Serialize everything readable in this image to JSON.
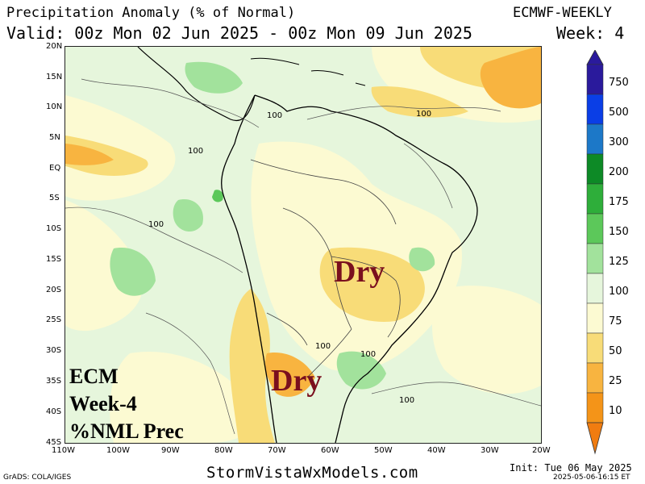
{
  "header": {
    "title": "Precipitation Anomaly (% of Normal)",
    "valid": "Valid: 00z Mon 02 Jun 2025 - 00z Mon 09 Jun 2025",
    "model": "ECMWF-WEEKLY",
    "week": "Week: 4"
  },
  "axes": {
    "lat_labels": [
      "20N",
      "15N",
      "10N",
      "5N",
      "EQ",
      "5S",
      "10S",
      "15S",
      "20S",
      "25S",
      "30S",
      "35S",
      "40S",
      "45S"
    ],
    "lon_labels": [
      "110W",
      "100W",
      "90W",
      "80W",
      "70W",
      "60W",
      "50W",
      "40W",
      "30W",
      "20W"
    ]
  },
  "annotations": {
    "dry_north": "Dry",
    "dry_south": "Dry",
    "ecm_line1": "ECM",
    "ecm_line2": "Week-4",
    "ecm_line3": "%NML Prec"
  },
  "contour_labels": [
    "100",
    "100",
    "100",
    "100",
    "100",
    "100",
    "100"
  ],
  "legend": {
    "labels": [
      "750",
      "500",
      "300",
      "200",
      "175",
      "150",
      "125",
      "100",
      "75",
      "50",
      "25",
      "10"
    ],
    "colors": [
      "#2a1a9c",
      "#0a3ee6",
      "#1c78c8",
      "#0d8a26",
      "#2eae3a",
      "#5cc85a",
      "#a2e29c",
      "#e6f6dc",
      "#fcfad2",
      "#f8dc78",
      "#f8b440",
      "#f49418"
    ]
  },
  "footer": {
    "grads": "GrADS: COLA/IGES",
    "site": "StormVistaWxModels.com",
    "init": "Init: Tue 06 May 2025",
    "stamp": "2025-05-06-16:15 ET"
  },
  "colors": {
    "dry_text": "#7a0f1e",
    "near_normal": "#e6f6dc",
    "above_normal_light": "#a2e29c",
    "below_normal_light": "#fcfad2",
    "below_normal": "#f8dc78",
    "much_below_normal": "#f8b440"
  }
}
